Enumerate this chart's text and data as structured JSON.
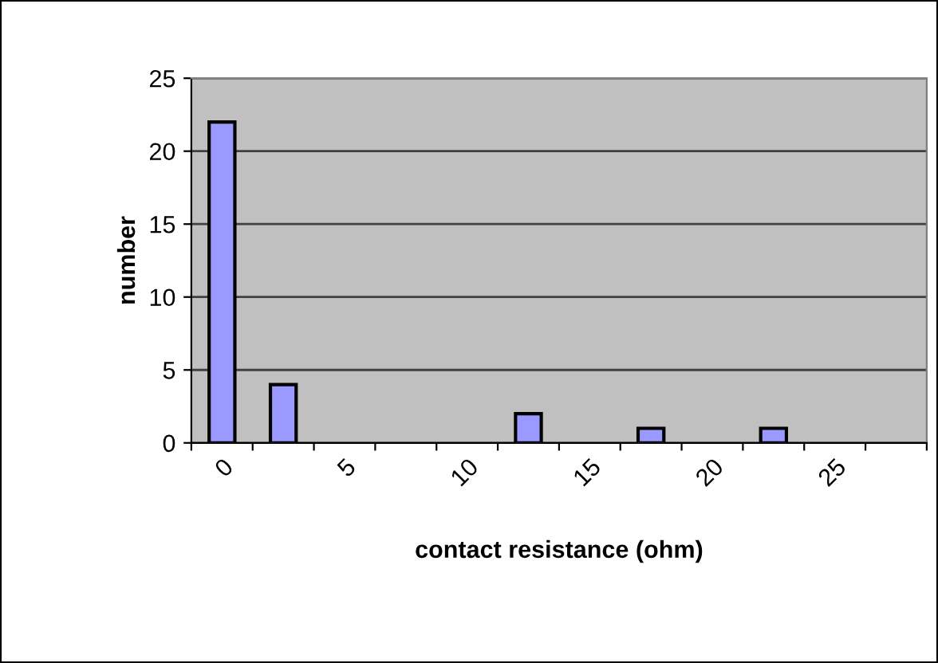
{
  "chart_data": {
    "type": "bar",
    "xlabel": "contact resistance (ohm)",
    "ylabel": "number",
    "categories": [
      "0",
      null,
      "5",
      null,
      "10",
      null,
      "15",
      null,
      "20",
      null,
      "25",
      null
    ],
    "values": [
      22,
      4,
      0,
      0,
      0,
      2,
      0,
      1,
      0,
      1,
      0,
      0
    ],
    "color": "#9999ff",
    "ylim": [
      0,
      25
    ],
    "yticks": [
      0,
      5,
      10,
      15,
      20,
      25
    ],
    "grid": "y",
    "legend": false
  }
}
